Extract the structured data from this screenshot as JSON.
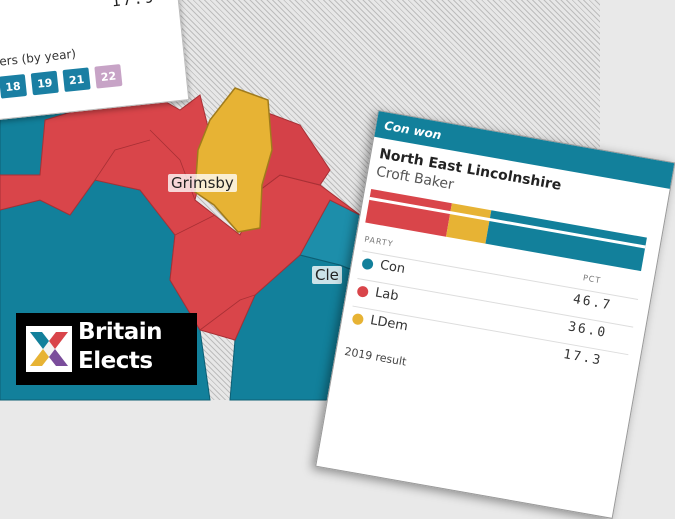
{
  "colors": {
    "con": "#12809b",
    "lab": "#d9454a",
    "ldem": "#e7b334",
    "other": "#c7a3c6"
  },
  "top_card": {
    "number": "17.9",
    "legend_label": "ers (by year)",
    "years": [
      "18",
      "19",
      "21",
      "22"
    ]
  },
  "towns": {
    "grimsby": "Grimsby",
    "cleethorpes": "Cle"
  },
  "result_card": {
    "header": "Con won",
    "constituency": "North East Lincolnshire",
    "candidate": "Croft Baker",
    "party_col": "PARTY",
    "pct_col": "PCT",
    "rows": [
      {
        "party": "Con",
        "pct": "46.7"
      },
      {
        "party": "Lab",
        "pct": "36.0"
      },
      {
        "party": "LDem",
        "pct": "17.3"
      }
    ],
    "footer": "2019 result"
  },
  "logo": {
    "line1": "Britain",
    "line2": "Elects"
  }
}
